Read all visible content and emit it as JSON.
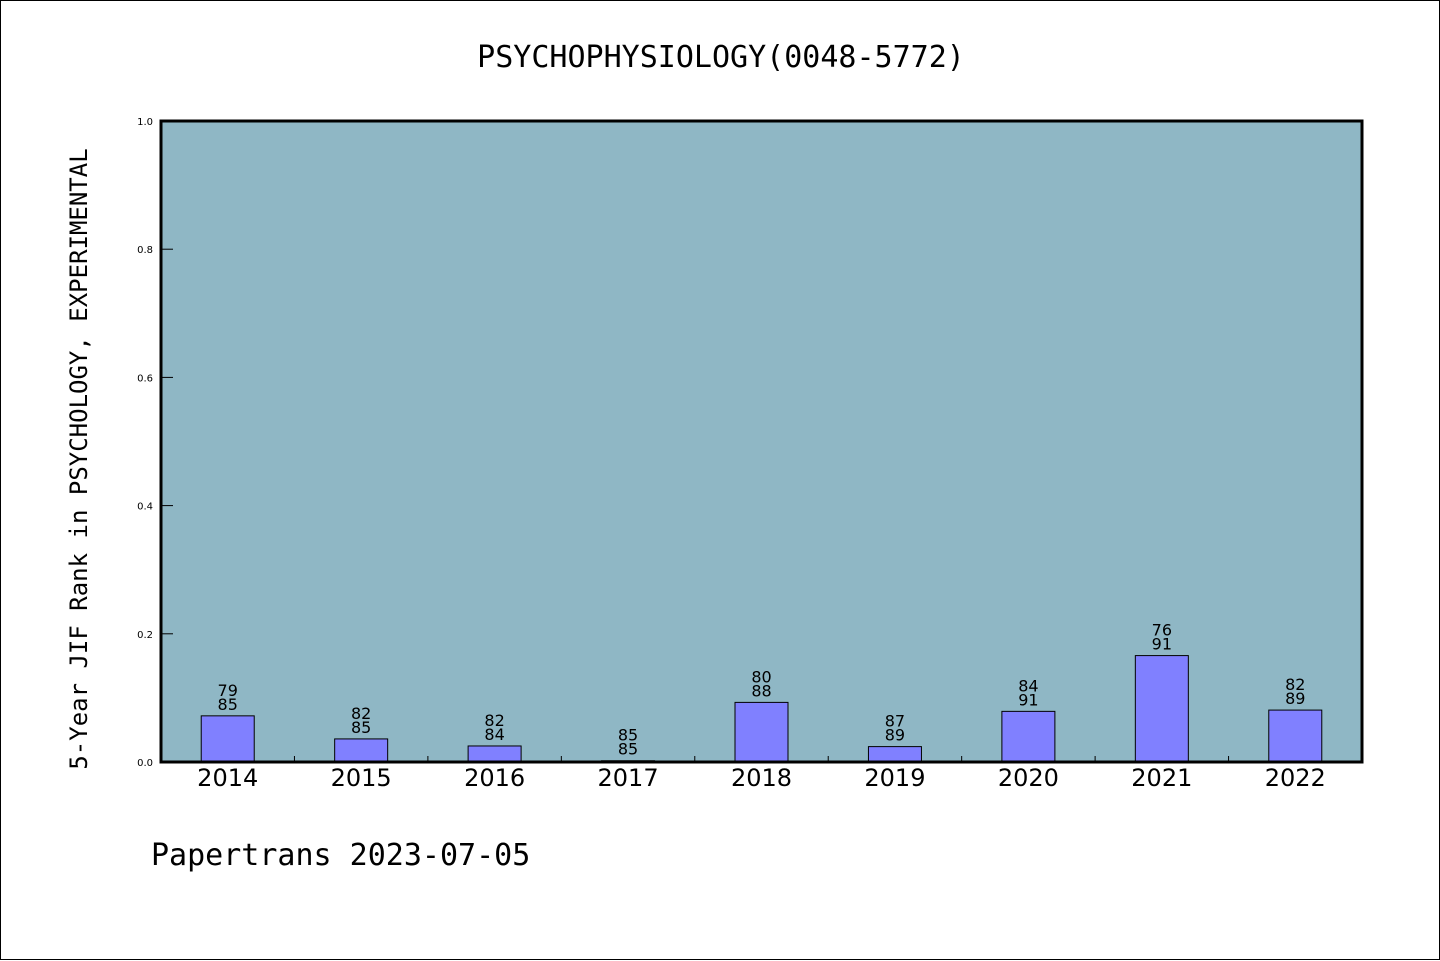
{
  "chart_data": {
    "type": "bar",
    "title": "PSYCHOPHYSIOLOGY(0048-5772)",
    "ylabel": "5-Year JIF Rank in PSYCHOLOGY, EXPERIMENTAL",
    "xlabel": "",
    "ylim": [
      0,
      1.0
    ],
    "yticks": [
      "0.0",
      "0.2",
      "0.4",
      "0.6",
      "0.8",
      "1.0"
    ],
    "categories": [
      "2014",
      "2015",
      "2016",
      "2017",
      "2018",
      "2019",
      "2020",
      "2021",
      "2022"
    ],
    "values": [
      0.072,
      0.036,
      0.025,
      0.002,
      0.093,
      0.024,
      0.079,
      0.166,
      0.081
    ],
    "labels_top": [
      "79",
      "82",
      "82",
      "85",
      "80",
      "87",
      "84",
      "76",
      "82"
    ],
    "labels_bottom": [
      "85",
      "85",
      "84",
      "85",
      "88",
      "89",
      "91",
      "91",
      "89"
    ],
    "grid": false,
    "colors": {
      "plot_bg": "#8fb7c5",
      "bar": "#8080ff"
    }
  },
  "footer": {
    "text": "Papertrans 2023-07-05"
  }
}
